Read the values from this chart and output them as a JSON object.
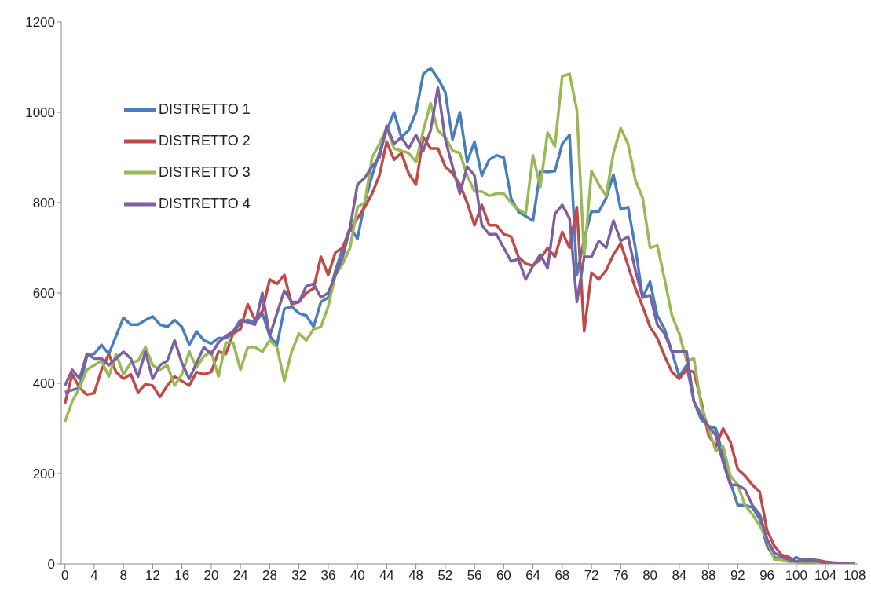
{
  "chart_data": {
    "type": "line",
    "x": [
      0,
      1,
      2,
      3,
      4,
      5,
      6,
      7,
      8,
      9,
      10,
      11,
      12,
      13,
      14,
      15,
      16,
      17,
      18,
      19,
      20,
      21,
      22,
      23,
      24,
      25,
      26,
      27,
      28,
      29,
      30,
      31,
      32,
      33,
      34,
      35,
      36,
      37,
      38,
      39,
      40,
      41,
      42,
      43,
      44,
      45,
      46,
      47,
      48,
      49,
      50,
      51,
      52,
      53,
      54,
      55,
      56,
      57,
      58,
      59,
      60,
      61,
      62,
      63,
      64,
      65,
      66,
      67,
      68,
      69,
      70,
      71,
      72,
      73,
      74,
      75,
      76,
      77,
      78,
      79,
      80,
      81,
      82,
      83,
      84,
      85,
      86,
      87,
      88,
      89,
      90,
      91,
      92,
      93,
      94,
      95,
      96,
      97,
      98,
      99,
      100,
      101,
      102,
      103,
      104,
      105,
      106,
      107,
      108
    ],
    "xlim": [
      -0.5,
      108.5
    ],
    "xticks": [
      0,
      4,
      8,
      12,
      16,
      20,
      24,
      28,
      32,
      36,
      40,
      44,
      48,
      52,
      56,
      60,
      64,
      68,
      72,
      76,
      80,
      84,
      88,
      92,
      96,
      100,
      104,
      108
    ],
    "ylim": [
      0,
      1200
    ],
    "yticks": [
      0,
      200,
      400,
      600,
      800,
      1000,
      1200
    ],
    "grid": false,
    "legend": "top left",
    "marker": "none",
    "line_style": "solid",
    "series": [
      {
        "name": "DISTRETTO 1",
        "color": "#4a7ebb",
        "values": [
          380,
          385,
          390,
          460,
          465,
          485,
          465,
          505,
          545,
          530,
          530,
          540,
          548,
          530,
          525,
          540,
          525,
          485,
          515,
          495,
          488,
          500,
          500,
          510,
          535,
          540,
          535,
          555,
          505,
          485,
          565,
          570,
          555,
          550,
          525,
          580,
          590,
          650,
          700,
          745,
          720,
          800,
          860,
          910,
          960,
          1000,
          945,
          960,
          1000,
          1085,
          1098,
          1075,
          1045,
          940,
          1000,
          890,
          935,
          860,
          895,
          905,
          900,
          810,
          780,
          770,
          760,
          870,
          868,
          870,
          930,
          950,
          640,
          720,
          780,
          780,
          810,
          862,
          785,
          790,
          700,
          590,
          625,
          550,
          520,
          470,
          415,
          440,
          360,
          320,
          305,
          300,
          240,
          180,
          130,
          130,
          125,
          100,
          40,
          15,
          10,
          5,
          15,
          5,
          5,
          8,
          null,
          null,
          null,
          null,
          null
        ]
      },
      {
        "name": "DISTRETTO 2",
        "color": "#be4b48",
        "values": [
          355,
          420,
          390,
          375,
          378,
          430,
          465,
          425,
          410,
          420,
          380,
          398,
          395,
          370,
          395,
          415,
          405,
          395,
          425,
          420,
          425,
          470,
          465,
          510,
          520,
          575,
          540,
          560,
          630,
          620,
          640,
          575,
          580,
          600,
          610,
          680,
          640,
          690,
          700,
          740,
          765,
          790,
          820,
          860,
          935,
          895,
          910,
          865,
          840,
          945,
          920,
          920,
          880,
          865,
          840,
          800,
          750,
          795,
          750,
          750,
          730,
          725,
          680,
          665,
          660,
          675,
          700,
          680,
          735,
          700,
          790,
          515,
          645,
          630,
          650,
          685,
          710,
          660,
          610,
          570,
          525,
          500,
          460,
          425,
          410,
          430,
          425,
          360,
          285,
          260,
          300,
          270,
          210,
          195,
          175,
          160,
          75,
          40,
          20,
          15,
          5,
          5,
          10,
          8,
          5,
          3,
          2,
          0,
          0
        ]
      },
      {
        "name": "DISTRETTO 3",
        "color": "#98b954",
        "values": [
          315,
          360,
          390,
          430,
          440,
          450,
          415,
          465,
          420,
          445,
          450,
          480,
          440,
          430,
          440,
          395,
          420,
          470,
          435,
          460,
          470,
          415,
          490,
          490,
          430,
          480,
          480,
          470,
          495,
          480,
          405,
          470,
          510,
          495,
          520,
          525,
          570,
          640,
          665,
          700,
          790,
          800,
          900,
          930,
          965,
          920,
          915,
          910,
          890,
          960,
          1020,
          960,
          945,
          915,
          910,
          860,
          825,
          825,
          815,
          820,
          820,
          800,
          785,
          775,
          905,
          835,
          955,
          925,
          1080,
          1085,
          1005,
          680,
          870,
          840,
          815,
          910,
          965,
          930,
          850,
          810,
          700,
          705,
          630,
          550,
          510,
          450,
          455,
          350,
          300,
          250,
          260,
          195,
          175,
          130,
          110,
          85,
          55,
          10,
          10,
          5,
          5,
          0,
          0,
          5,
          0,
          null,
          null,
          null,
          null
        ]
      },
      {
        "name": "DISTRETTO 4",
        "color": "#7d60a0",
        "values": [
          395,
          430,
          410,
          465,
          455,
          455,
          440,
          455,
          470,
          455,
          415,
          470,
          410,
          440,
          450,
          495,
          445,
          410,
          445,
          480,
          465,
          490,
          505,
          515,
          540,
          535,
          530,
          600,
          505,
          555,
          605,
          580,
          580,
          615,
          620,
          590,
          600,
          640,
          680,
          745,
          840,
          855,
          880,
          900,
          970,
          930,
          945,
          920,
          950,
          915,
          960,
          1055,
          940,
          880,
          820,
          880,
          860,
          750,
          730,
          730,
          700,
          670,
          675,
          630,
          660,
          685,
          655,
          775,
          795,
          765,
          580,
          680,
          680,
          715,
          700,
          760,
          715,
          725,
          650,
          590,
          595,
          530,
          510,
          470,
          470,
          470,
          360,
          330,
          305,
          285,
          225,
          175,
          175,
          165,
          130,
          110,
          55,
          25,
          15,
          10,
          5,
          10,
          10,
          5,
          2,
          2,
          0,
          0,
          0
        ]
      }
    ]
  }
}
